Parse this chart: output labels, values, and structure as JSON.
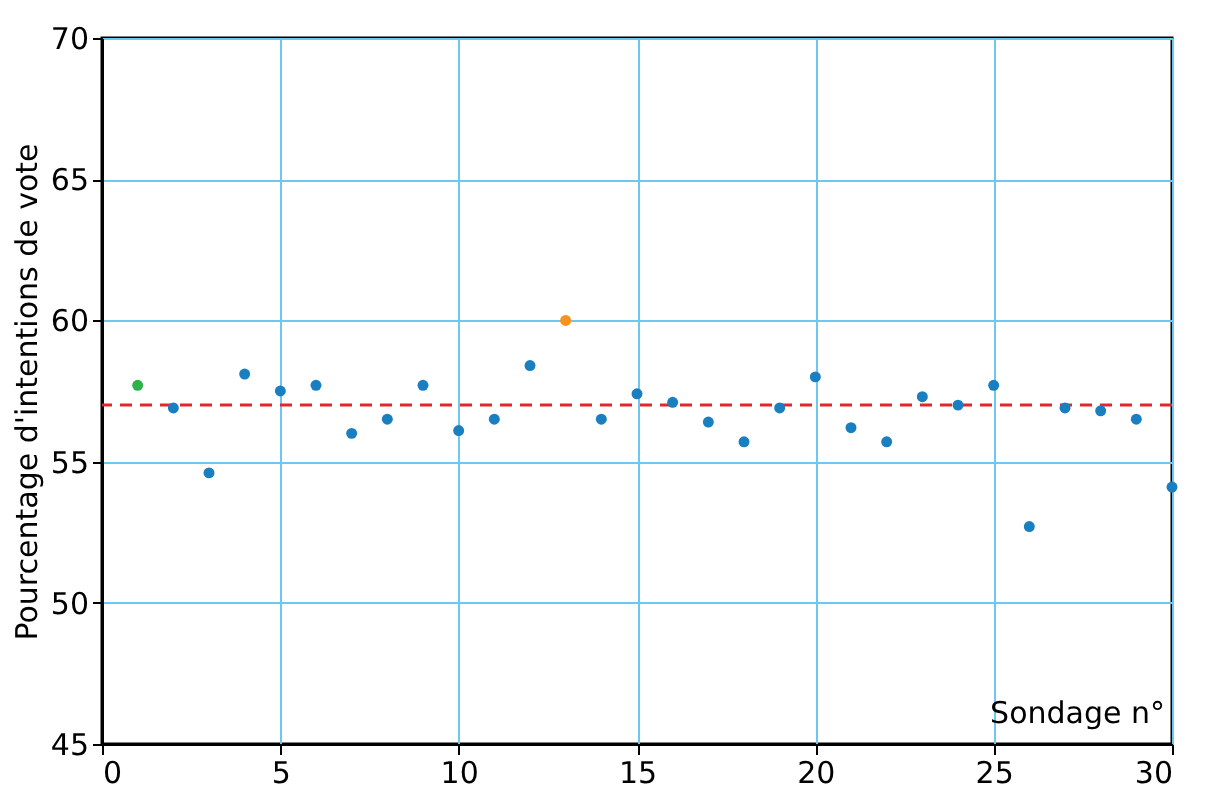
{
  "chart_data": {
    "type": "scatter",
    "xlabel": "Sondage n°",
    "ylabel": "Pourcentage d'intentions de vote",
    "xlim": [
      0,
      30
    ],
    "xticks": [
      0,
      5,
      10,
      15,
      20,
      25,
      30
    ],
    "ylim": [
      45,
      70
    ],
    "yticks": [
      45,
      50,
      55,
      60,
      65,
      70
    ],
    "grid": true,
    "marker": "circle",
    "series": [
      {
        "color": "#1a7fc1",
        "x": [
          2,
          3,
          4,
          5,
          6,
          7,
          8,
          9,
          10,
          11,
          12,
          14,
          15,
          16,
          17,
          18,
          19,
          20,
          21,
          22,
          23,
          24,
          25,
          26,
          27,
          28,
          29,
          30
        ],
        "values": [
          56.9,
          54.6,
          58.1,
          57.5,
          57.7,
          56.0,
          56.5,
          57.7,
          56.1,
          56.5,
          58.4,
          56.5,
          57.4,
          57.1,
          56.4,
          55.7,
          56.9,
          58.0,
          56.2,
          55.7,
          57.3,
          57.0,
          57.7,
          52.7,
          56.9,
          56.8,
          56.5,
          54.1
        ]
      },
      {
        "color": "#2db34a",
        "x": [
          1
        ],
        "values": [
          57.7
        ]
      },
      {
        "color": "#f39322",
        "x": [
          13
        ],
        "values": [
          60
        ]
      }
    ],
    "ref_lines": [
      {
        "axis": "y",
        "value": 57,
        "color": "#e3262b",
        "line_style": "dashed"
      }
    ]
  }
}
